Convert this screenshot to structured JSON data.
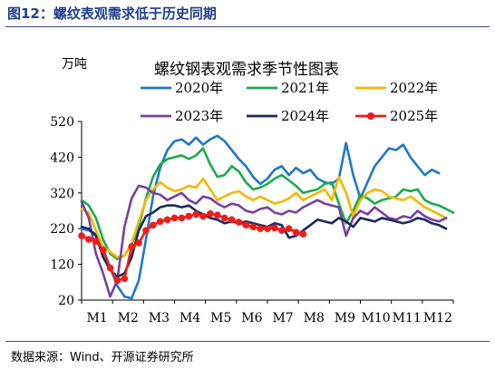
{
  "figure_title": "图12：螺纹表观需求低于历史同期",
  "source": "数据来源：Wind、开源证券研究所",
  "chart_data": {
    "type": "line",
    "title": "螺纹钢表观需求季节性图表",
    "ylabel": "万吨",
    "xlabel": "",
    "ylim": [
      20,
      520
    ],
    "yticks": [
      20,
      120,
      220,
      320,
      420,
      520
    ],
    "xticks": [
      "M1",
      "M2",
      "M3",
      "M4",
      "M5",
      "M6",
      "M7",
      "M8",
      "M9",
      "M10",
      "M11",
      "M12"
    ],
    "x_unit": "week",
    "legend_position": "top",
    "grid": false,
    "series": [
      {
        "name": "2020年",
        "color": "#1f78c8",
        "marker": "none",
        "x": [
          1,
          2,
          3,
          4,
          5,
          6,
          7,
          8,
          9,
          10,
          11,
          12,
          13,
          14,
          15,
          16,
          17,
          18,
          19,
          20,
          21,
          22,
          23,
          24,
          25,
          26,
          27,
          28,
          29,
          30,
          31,
          32,
          33,
          34,
          35,
          36,
          37,
          38,
          39,
          40,
          41,
          42,
          43,
          44,
          45,
          46,
          47,
          48,
          49,
          50,
          51
        ],
        "values": [
          220,
          215,
          205,
          165,
          110,
          60,
          30,
          25,
          75,
          190,
          310,
          390,
          440,
          465,
          470,
          455,
          475,
          455,
          470,
          480,
          465,
          440,
          415,
          395,
          365,
          345,
          360,
          385,
          395,
          370,
          390,
          375,
          385,
          360,
          350,
          345,
          360,
          460,
          370,
          305,
          350,
          395,
          420,
          445,
          440,
          455,
          420,
          395,
          370,
          385,
          375
        ]
      },
      {
        "name": "2021年",
        "color": "#1aab4c",
        "marker": "none",
        "x": [
          1,
          2,
          3,
          4,
          5,
          6,
          7,
          8,
          9,
          10,
          11,
          12,
          13,
          14,
          15,
          16,
          17,
          18,
          19,
          20,
          21,
          22,
          23,
          24,
          25,
          26,
          27,
          28,
          29,
          30,
          31,
          32,
          33,
          34,
          35,
          36,
          37,
          38,
          39,
          40,
          41,
          42,
          43,
          44,
          45,
          46,
          47,
          48,
          49,
          50,
          51,
          52,
          53
        ],
        "values": [
          300,
          285,
          250,
          190,
          150,
          135,
          145,
          175,
          225,
          305,
          365,
          400,
          415,
          420,
          425,
          415,
          425,
          445,
          400,
          365,
          370,
          395,
          380,
          350,
          330,
          335,
          345,
          360,
          370,
          355,
          340,
          320,
          325,
          330,
          345,
          350,
          290,
          235,
          270,
          315,
          305,
          290,
          300,
          305,
          310,
          330,
          325,
          330,
          300,
          290,
          285,
          275,
          265
        ]
      },
      {
        "name": "2022年",
        "color": "#f5b800",
        "marker": "none",
        "x": [
          1,
          2,
          3,
          4,
          5,
          6,
          7,
          8,
          9,
          10,
          11,
          12,
          13,
          14,
          15,
          16,
          17,
          18,
          19,
          20,
          21,
          22,
          23,
          24,
          25,
          26,
          27,
          28,
          29,
          30,
          31,
          32,
          33,
          34,
          35,
          36,
          37,
          38,
          39,
          40,
          41,
          42,
          43,
          44,
          45,
          46,
          47,
          48,
          49,
          50,
          51,
          52
        ],
        "values": [
          275,
          265,
          215,
          170,
          155,
          140,
          145,
          180,
          240,
          300,
          330,
          350,
          335,
          325,
          330,
          340,
          335,
          360,
          330,
          300,
          310,
          320,
          325,
          310,
          300,
          310,
          300,
          290,
          295,
          305,
          320,
          300,
          310,
          320,
          330,
          300,
          365,
          320,
          255,
          300,
          320,
          330,
          325,
          310,
          305,
          300,
          310,
          295,
          280,
          270,
          260,
          250
        ]
      },
      {
        "name": "2023年",
        "color": "#7b3fa0",
        "marker": "none",
        "x": [
          1,
          2,
          3,
          4,
          5,
          6,
          7,
          8,
          9,
          10,
          11,
          12,
          13,
          14,
          15,
          16,
          17,
          18,
          19,
          20,
          21,
          22,
          23,
          24,
          25,
          26,
          27,
          28,
          29,
          30,
          31,
          32,
          33,
          34,
          35,
          36,
          37,
          38,
          39,
          40,
          41,
          42,
          43,
          44,
          45,
          46,
          47,
          48,
          49,
          50,
          51,
          52
        ],
        "values": [
          295,
          250,
          150,
          95,
          30,
          75,
          225,
          305,
          340,
          335,
          320,
          315,
          300,
          310,
          320,
          300,
          290,
          310,
          305,
          290,
          280,
          290,
          285,
          270,
          265,
          275,
          280,
          265,
          260,
          270,
          265,
          280,
          290,
          300,
          290,
          285,
          280,
          200,
          250,
          270,
          260,
          280,
          265,
          250,
          245,
          255,
          250,
          270,
          255,
          245,
          240,
          250
        ]
      },
      {
        "name": "2024年",
        "color": "#1c2a5a",
        "marker": "none",
        "x": [
          1,
          2,
          3,
          4,
          5,
          6,
          7,
          8,
          9,
          10,
          11,
          12,
          13,
          14,
          15,
          16,
          17,
          18,
          19,
          20,
          21,
          22,
          23,
          24,
          25,
          26,
          27,
          28,
          29,
          30,
          31,
          32,
          33,
          34,
          35,
          36,
          37,
          38,
          39,
          40,
          41,
          42,
          43,
          44,
          45,
          46,
          47,
          48,
          49,
          50,
          51,
          52
        ],
        "values": [
          225,
          220,
          200,
          140,
          105,
          85,
          95,
          140,
          215,
          255,
          265,
          280,
          285,
          285,
          280,
          285,
          270,
          260,
          250,
          245,
          235,
          240,
          235,
          240,
          235,
          230,
          225,
          235,
          230,
          195,
          200,
          215,
          230,
          245,
          240,
          235,
          250,
          240,
          225,
          250,
          245,
          240,
          250,
          245,
          240,
          235,
          240,
          250,
          245,
          235,
          230,
          220
        ]
      },
      {
        "name": "2025年",
        "color": "#ee1c1c",
        "marker": "circle",
        "x": [
          1,
          2,
          3,
          4,
          5,
          6,
          7,
          8,
          9,
          10,
          11,
          12,
          13,
          14,
          15,
          16,
          17,
          18,
          19,
          20,
          21,
          22,
          23,
          24,
          25,
          26,
          27,
          28,
          29,
          30,
          31,
          32
        ],
        "values": [
          200,
          190,
          185,
          160,
          110,
          75,
          80,
          170,
          180,
          215,
          230,
          240,
          245,
          250,
          250,
          255,
          260,
          255,
          262,
          258,
          250,
          245,
          238,
          230,
          225,
          220,
          220,
          222,
          215,
          220,
          210,
          205
        ]
      }
    ]
  }
}
